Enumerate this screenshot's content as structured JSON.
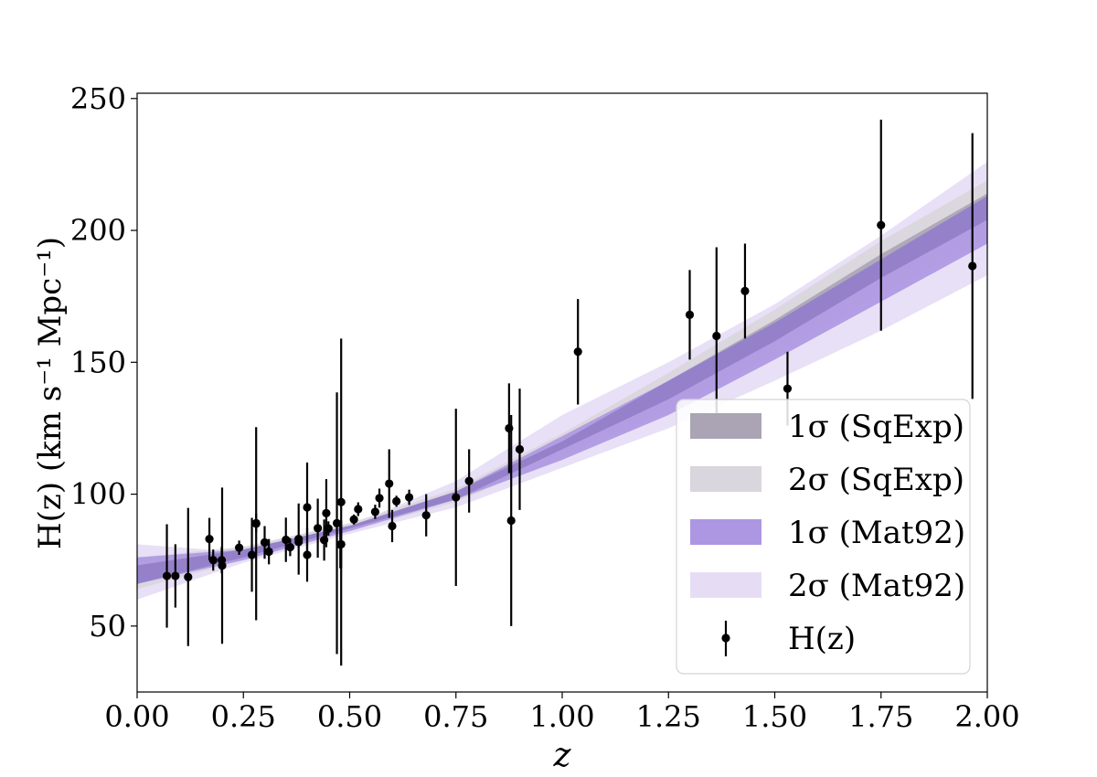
{
  "chart_data": {
    "type": "scatter",
    "title": "",
    "xlabel": "z",
    "ylabel": "H(z) (km s⁻¹ Mpc⁻¹)",
    "xlim": [
      0,
      2
    ],
    "ylim": [
      25,
      252
    ],
    "xticks": [
      "0.00",
      "0.25",
      "0.50",
      "0.75",
      "1.00",
      "1.25",
      "1.50",
      "1.75",
      "2.00"
    ],
    "yticks": [
      "50",
      "100",
      "150",
      "200",
      "250"
    ],
    "grid": false,
    "legend_position": "lower-right",
    "bands": [
      {
        "name": "2σ (Mat92)",
        "color": "#e6ddf5",
        "x": [
          0,
          0.25,
          0.5,
          0.75,
          1.0,
          1.25,
          1.5,
          1.75,
          2.0
        ],
        "lower": [
          60,
          74,
          85,
          95,
          110,
          125,
          143,
          162,
          183
        ],
        "upper": [
          81,
          78,
          88,
          105,
          130,
          150,
          172,
          198,
          226
        ]
      },
      {
        "name": "2σ (SqExp)",
        "color": "#d9d6dd",
        "x": [
          0,
          0.25,
          0.5,
          0.75,
          1.0,
          1.25,
          1.5,
          1.75,
          2.0
        ],
        "lower": [
          64,
          75,
          86,
          97,
          114,
          132,
          153,
          176,
          197
        ],
        "upper": [
          76,
          80,
          89,
          102,
          123,
          146,
          170,
          196,
          219
        ]
      },
      {
        "name": "1σ (SqExp)",
        "color": "#aaa4b4",
        "x": [
          0,
          0.25,
          0.5,
          0.75,
          1.0,
          1.25,
          1.5,
          1.75,
          2.0
        ],
        "lower": [
          66,
          76,
          87,
          98,
          117,
          136,
          158,
          182,
          204
        ],
        "upper": [
          73,
          79,
          88,
          101,
          120,
          143,
          166,
          191,
          214
        ]
      },
      {
        "name": "1σ (Mat92)",
        "color": "#ad97e3",
        "x": [
          0,
          0.25,
          0.5,
          0.75,
          1.0,
          1.25,
          1.5,
          1.75,
          2.0
        ],
        "lower": [
          66,
          75,
          86,
          98,
          113,
          130,
          151,
          173,
          195
        ],
        "upper": [
          76,
          79,
          88,
          101,
          122,
          143,
          165,
          189,
          213
        ]
      }
    ],
    "overlap_color": "#9480c8",
    "series": [
      {
        "name": "H(z)",
        "color": "#000000",
        "x": [
          0.07,
          0.09,
          0.12,
          0.17,
          0.179,
          0.199,
          0.2,
          0.24,
          0.27,
          0.28,
          0.28,
          0.3,
          0.31,
          0.35,
          0.36,
          0.38,
          0.38,
          0.4,
          0.4,
          0.425,
          0.44,
          0.445,
          0.45,
          0.47,
          0.478,
          0.48,
          0.48,
          0.51,
          0.52,
          0.56,
          0.57,
          0.593,
          0.6,
          0.61,
          0.64,
          0.68,
          0.75,
          0.781,
          0.875,
          0.88,
          0.9,
          1.037,
          1.3,
          1.363,
          1.43,
          1.53,
          1.75,
          1.965
        ],
        "y": [
          69,
          69,
          68.6,
          83,
          75,
          75,
          72.9,
          79.7,
          77,
          88.8,
          89,
          81.7,
          78.2,
          82.7,
          79.9,
          81.9,
          83,
          95,
          77,
          87.1,
          82.6,
          92.8,
          87,
          89,
          80.9,
          97,
          81,
          90.4,
          94.3,
          93.3,
          98.5,
          104,
          87.9,
          97.3,
          98.8,
          92,
          98.8,
          105,
          125,
          90,
          117,
          154,
          168,
          160,
          177,
          140,
          202,
          186.5
        ],
        "err": [
          19.6,
          12,
          26.2,
          8,
          4,
          5,
          29.6,
          2.7,
          14,
          36.6,
          3.5,
          6.2,
          4.8,
          8.4,
          3.4,
          1.9,
          13.5,
          17,
          10.2,
          11.2,
          7.8,
          12.9,
          2.7,
          49.6,
          9,
          62,
          9,
          1.9,
          2.6,
          2.7,
          3.6,
          13,
          6.1,
          2.1,
          2.9,
          8,
          33.6,
          12,
          17,
          40,
          23,
          20,
          17,
          33.6,
          18,
          14,
          40,
          50.4
        ]
      }
    ]
  }
}
